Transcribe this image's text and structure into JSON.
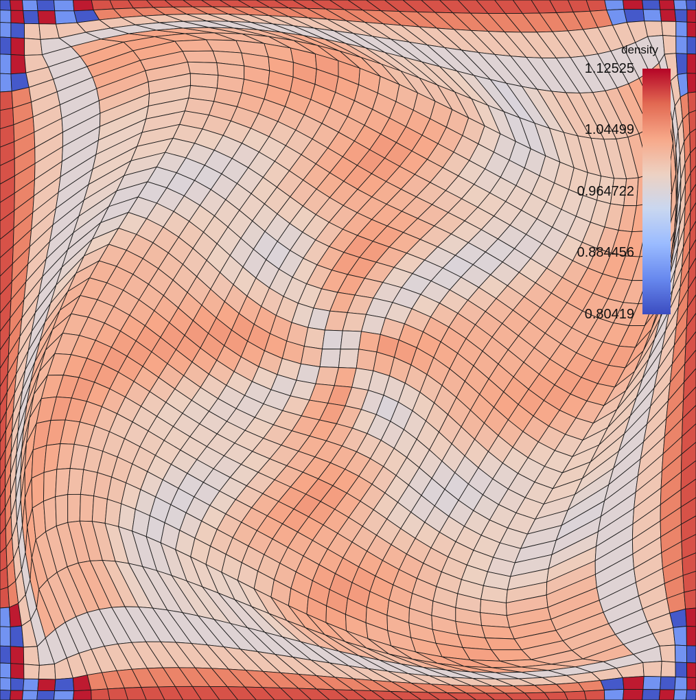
{
  "chart_data": {
    "type": "heatmap",
    "title": "",
    "legend": {
      "title": "density",
      "placement": "top-right",
      "min": 0.80419,
      "max": 1.12525,
      "tick_labels": [
        "1.12525",
        "1.04499",
        "0.964722",
        "0.884456",
        "0.80419"
      ],
      "tick_values": [
        1.12525,
        1.04499,
        0.964722,
        0.884456,
        0.80419
      ],
      "colormap": [
        "#3b4cc0",
        "#6788ee",
        "#9abbff",
        "#c9d7f0",
        "#edd1c2",
        "#f7a889",
        "#e26952",
        "#b40426"
      ]
    },
    "mesh": {
      "kind": "structured quadrilateral grid, vortex-distorted",
      "grid_cells": 30,
      "boundary_band_cells": 5,
      "interior_density_range": [
        0.93,
        1.04
      ],
      "corner_regions": {
        "top-left": "low density (blue) next to high density (red)",
        "top-right": "low density (blue) next to high density (red)",
        "bottom-left": "low density (blue) next to high density (red)",
        "bottom-right": "low density (blue) next to high density (red)"
      }
    }
  }
}
